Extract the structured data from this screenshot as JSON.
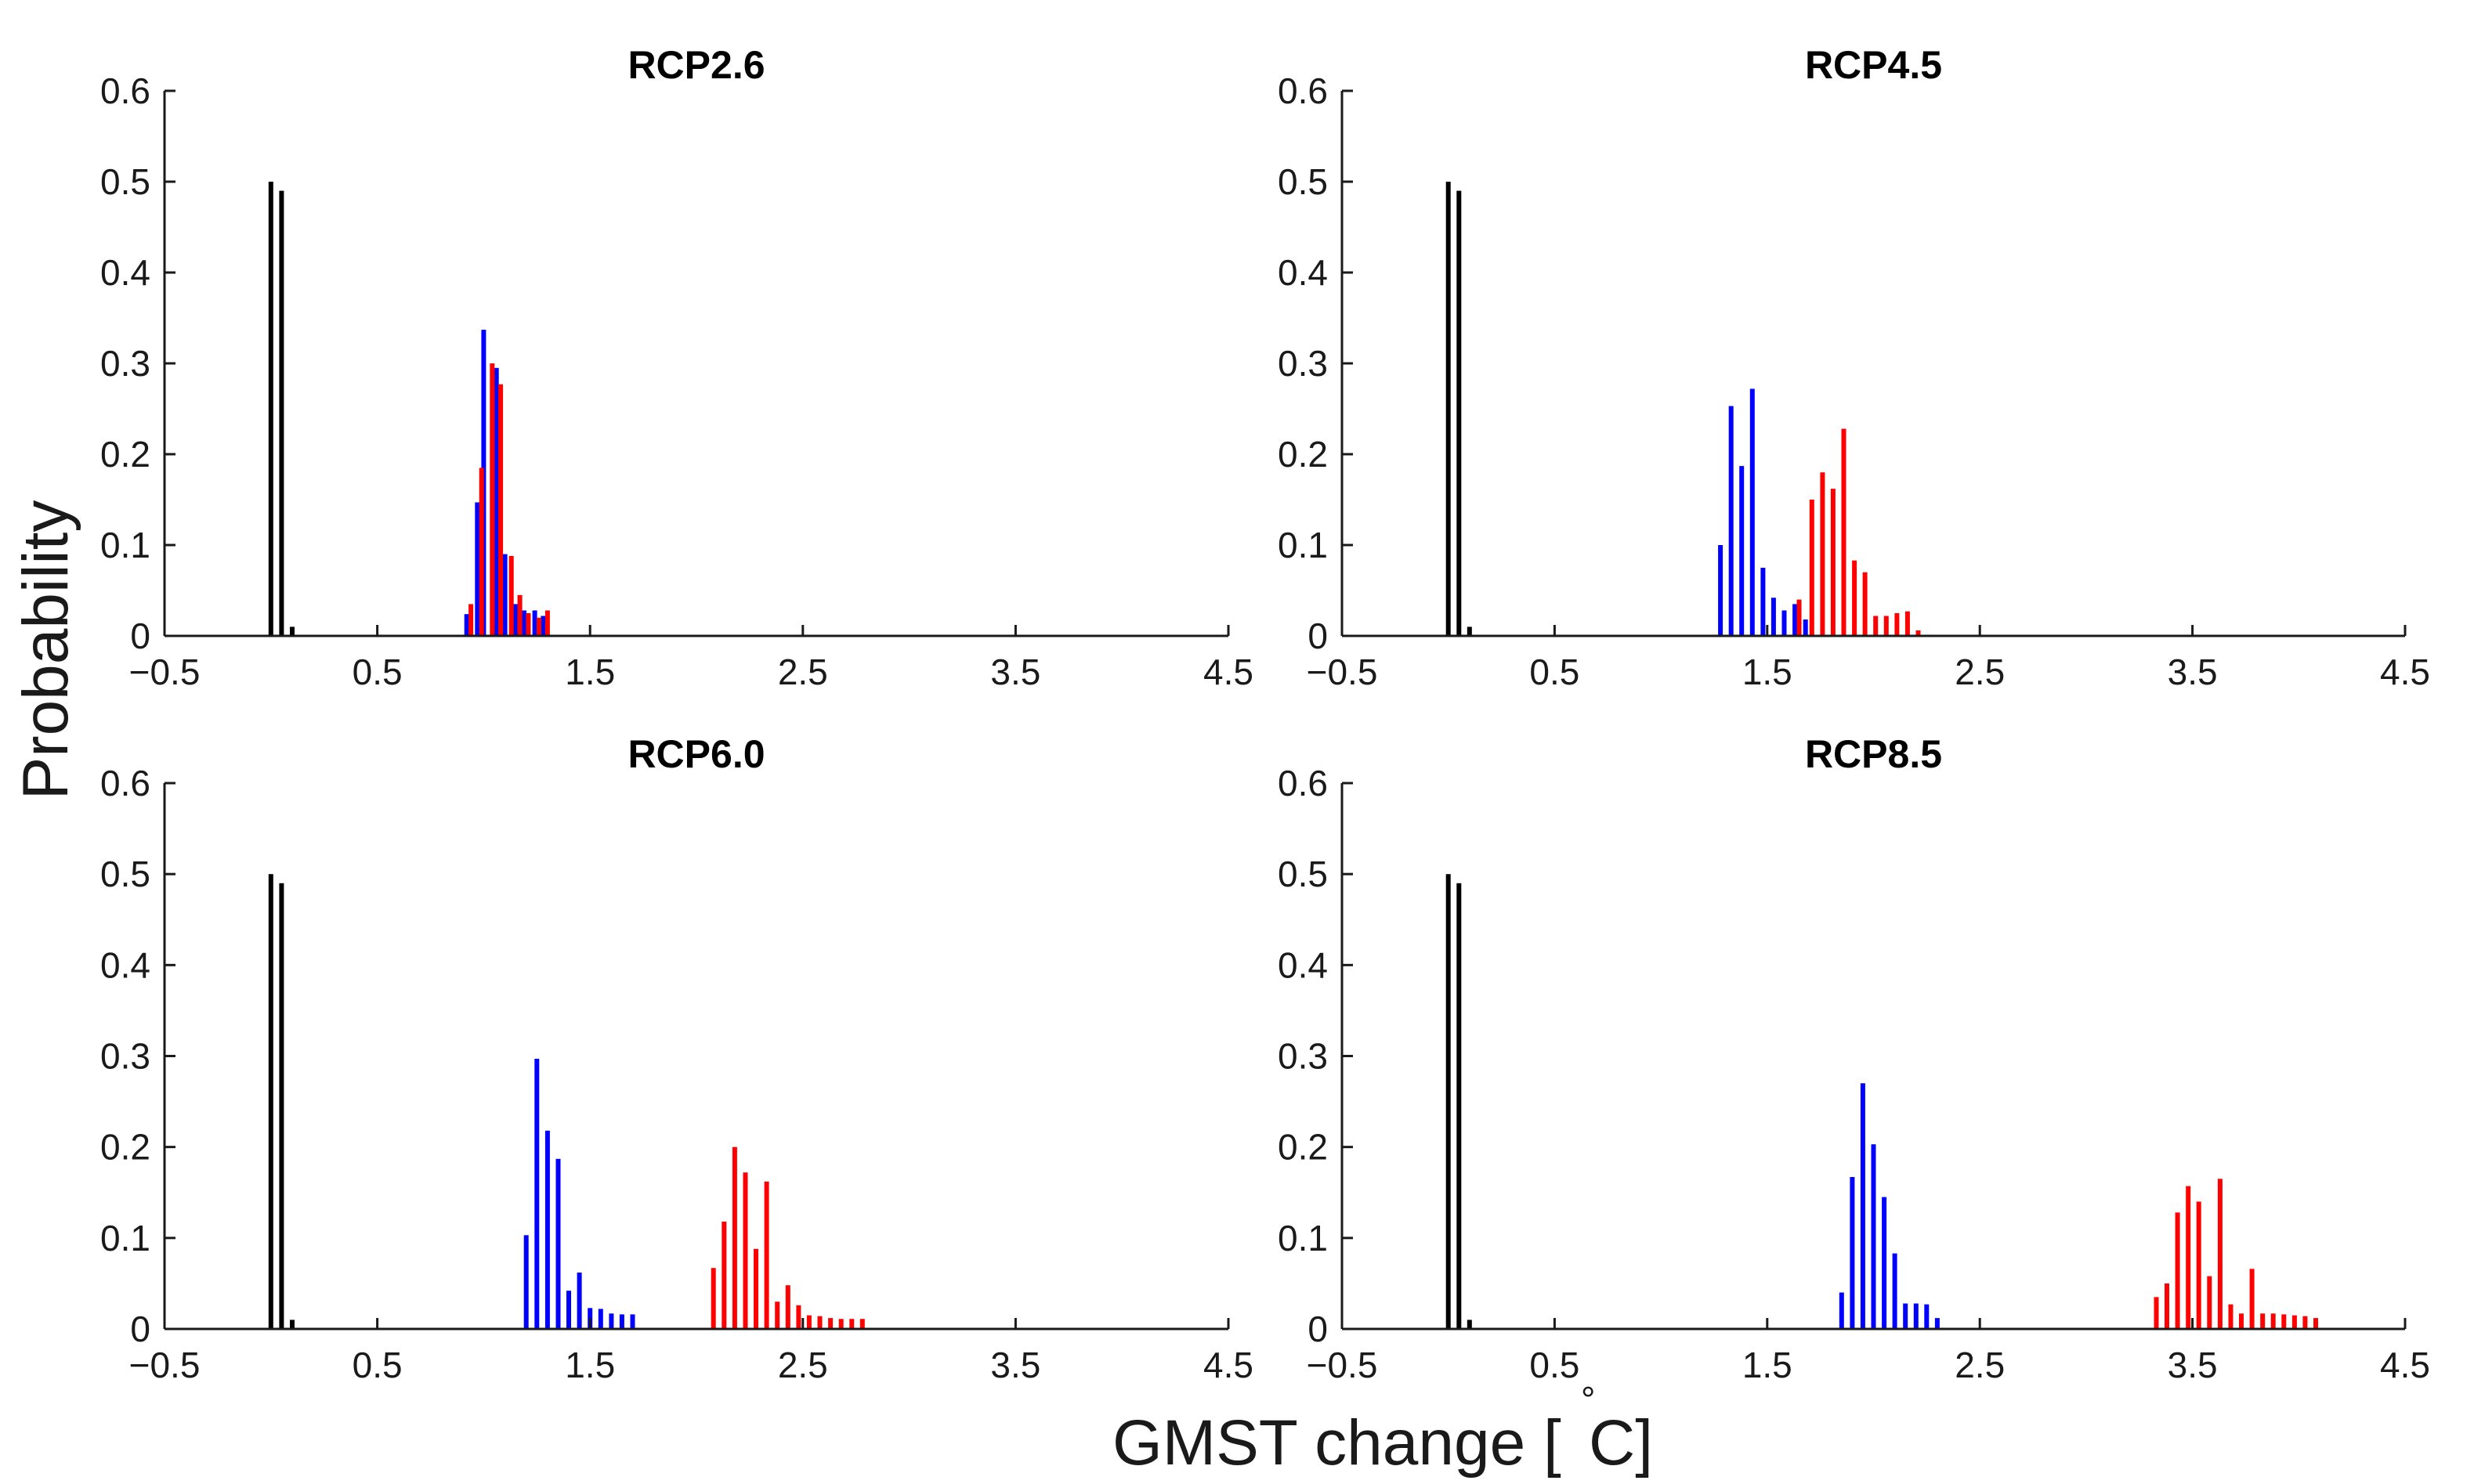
{
  "chart_data": {
    "type": "bar",
    "title": "",
    "xlabel": "GMST change [",
    "xlabel_degree": "°",
    "xlabel_unit": "C]",
    "ylabel": "Probability",
    "xlim": [
      -0.5,
      4.5
    ],
    "ylim": [
      0,
      0.6
    ],
    "xticks": [
      "-0.5",
      "0.5",
      "1.5",
      "2.5",
      "3.5",
      "4.5"
    ],
    "xtick_values": [
      -0.5,
      0.5,
      1.5,
      2.5,
      3.5,
      4.5
    ],
    "yticks": [
      "0",
      "0.1",
      "0.2",
      "0.3",
      "0.4",
      "0.5",
      "0.6"
    ],
    "ytick_values": [
      0,
      0.1,
      0.2,
      0.3,
      0.4,
      0.5,
      0.6
    ],
    "grid": false,
    "legend": "none",
    "colors": {
      "baseline": "#000000",
      "blue": "#0000ff",
      "red": "#ff0000"
    },
    "panels": [
      {
        "title": "RCP2.6",
        "series": [
          {
            "color": "black",
            "x": [
              0.0,
              0.05,
              0.1
            ],
            "values": [
              0.5,
              0.49,
              0.01
            ]
          },
          {
            "color": "blue",
            "x": [
              0.92,
              0.97,
              1.0,
              1.06,
              1.1,
              1.15,
              1.19,
              1.24,
              1.28
            ],
            "values": [
              0.024,
              0.147,
              0.337,
              0.295,
              0.09,
              0.035,
              0.028,
              0.028,
              0.022
            ]
          },
          {
            "color": "red",
            "x": [
              0.94,
              0.99,
              1.04,
              1.08,
              1.13,
              1.17,
              1.21,
              1.26,
              1.3
            ],
            "values": [
              0.035,
              0.185,
              0.3,
              0.277,
              0.088,
              0.045,
              0.025,
              0.02,
              0.028
            ]
          }
        ]
      },
      {
        "title": "RCP4.5",
        "series": [
          {
            "color": "black",
            "x": [
              0.0,
              0.05,
              0.1
            ],
            "values": [
              0.5,
              0.49,
              0.01
            ]
          },
          {
            "color": "blue",
            "x": [
              1.28,
              1.33,
              1.38,
              1.43,
              1.48,
              1.53,
              1.58,
              1.63,
              1.68
            ],
            "values": [
              0.1,
              0.253,
              0.187,
              0.272,
              0.075,
              0.042,
              0.028,
              0.035,
              0.018
            ]
          },
          {
            "color": "red",
            "x": [
              1.65,
              1.71,
              1.76,
              1.81,
              1.86,
              1.91,
              1.96,
              2.01,
              2.06,
              2.11,
              2.16,
              2.21
            ],
            "values": [
              0.04,
              0.15,
              0.18,
              0.162,
              0.228,
              0.083,
              0.07,
              0.022,
              0.022,
              0.025,
              0.027,
              0.006
            ]
          }
        ]
      },
      {
        "title": "RCP6.0",
        "series": [
          {
            "color": "black",
            "x": [
              0.0,
              0.05,
              0.1
            ],
            "values": [
              0.5,
              0.49,
              0.01
            ]
          },
          {
            "color": "blue",
            "x": [
              1.2,
              1.25,
              1.3,
              1.35,
              1.4,
              1.45,
              1.5,
              1.55,
              1.6,
              1.65,
              1.7
            ],
            "values": [
              0.103,
              0.297,
              0.218,
              0.187,
              0.042,
              0.062,
              0.023,
              0.022,
              0.017,
              0.016,
              0.016
            ]
          },
          {
            "color": "red",
            "x": [
              2.08,
              2.13,
              2.18,
              2.23,
              2.28,
              2.33,
              2.38,
              2.43,
              2.48,
              2.53,
              2.58,
              2.63,
              2.68,
              2.73,
              2.78
            ],
            "values": [
              0.067,
              0.118,
              0.2,
              0.172,
              0.088,
              0.162,
              0.03,
              0.048,
              0.026,
              0.015,
              0.014,
              0.012,
              0.011,
              0.011,
              0.011
            ]
          }
        ]
      },
      {
        "title": "RCP8.5",
        "series": [
          {
            "color": "black",
            "x": [
              0.0,
              0.05,
              0.1
            ],
            "values": [
              0.5,
              0.49,
              0.01
            ]
          },
          {
            "color": "blue",
            "x": [
              1.85,
              1.9,
              1.95,
              2.0,
              2.05,
              2.1,
              2.15,
              2.2,
              2.25,
              2.3
            ],
            "values": [
              0.04,
              0.167,
              0.27,
              0.203,
              0.145,
              0.083,
              0.028,
              0.028,
              0.027,
              0.012
            ]
          },
          {
            "color": "red",
            "x": [
              3.33,
              3.38,
              3.43,
              3.48,
              3.53,
              3.58,
              3.63,
              3.68,
              3.73,
              3.78,
              3.83,
              3.88,
              3.93,
              3.98,
              4.03,
              4.08
            ],
            "values": [
              0.035,
              0.05,
              0.128,
              0.157,
              0.14,
              0.058,
              0.165,
              0.027,
              0.017,
              0.066,
              0.017,
              0.017,
              0.016,
              0.015,
              0.014,
              0.012
            ]
          }
        ]
      }
    ]
  }
}
